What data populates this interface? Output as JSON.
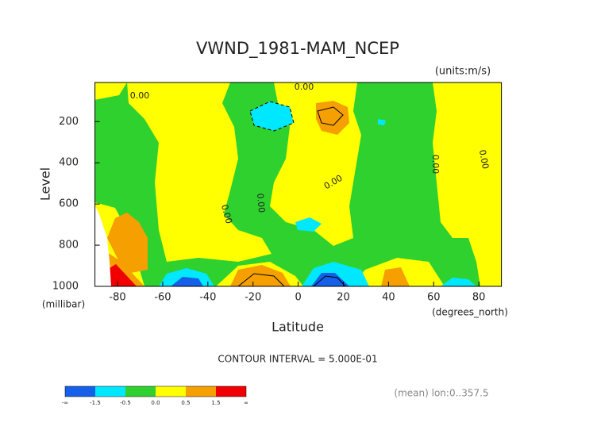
{
  "chart_data": {
    "type": "contour",
    "title": "VWND_1981-MAM_NCEP",
    "units_label": "(units:m/s)",
    "y_label": "Level",
    "y_unit": "(millibar)",
    "x_label": "Latitude",
    "x_unit": "(degrees_north)",
    "xlim": [
      -90,
      90
    ],
    "xticks": [
      -80,
      -60,
      -40,
      -20,
      0,
      20,
      40,
      60,
      80
    ],
    "ylim": [
      1000,
      10
    ],
    "yticks": [
      200,
      400,
      600,
      800,
      1000
    ],
    "contour_interval_text": "CONTOUR INTERVAL = 5.000E-01",
    "footnote": "(mean) lon:0..357.5",
    "colorbar": {
      "colors": [
        "#1560e8",
        "#00e8ff",
        "#2fd12f",
        "#ffff00",
        "#f5a000",
        "#f00000"
      ],
      "labels": [
        "-∞",
        "-1.5",
        "-0.5",
        "0.0",
        "0.5",
        "1.5",
        "∞"
      ]
    },
    "contour_labels": [
      "0.00",
      "0.00",
      "0.00",
      "0.00",
      "0.00",
      "0.00",
      "0.00"
    ]
  }
}
